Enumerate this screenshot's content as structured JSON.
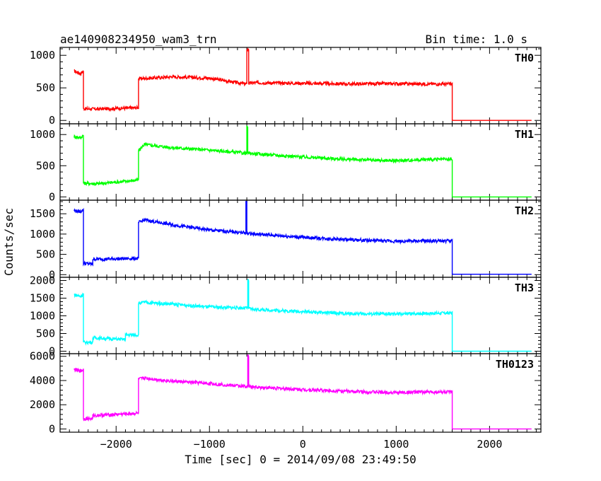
{
  "header": {
    "title": "ae140908234950_wam3_trn",
    "bin_time": "Bin time: 1.0 s"
  },
  "chart_data": {
    "type": "line",
    "xlabel": "Time [sec] 0 = 2014/09/08 23:49:50",
    "ylabel": "Counts/sec",
    "xlim": [
      -2600,
      2550
    ],
    "x_ticks": [
      -2000,
      -1000,
      0,
      1000,
      2000
    ],
    "x_tick_labels": [
      "−2000",
      "−1000",
      "0",
      "1000",
      "2000"
    ],
    "panels": [
      {
        "name": "TH0",
        "color": "#ff0000",
        "ylim": [
          -30,
          1100
        ],
        "y_ticks": [
          0,
          500,
          1000
        ],
        "y_tick_labels": [
          "0",
          "500",
          "1000"
        ],
        "x": [
          -2450,
          -2380,
          -2350,
          -2350,
          -2200,
          -1760,
          -1760,
          -1400,
          -1000,
          -620,
          -600,
          -600,
          -580,
          -580,
          -500,
          0,
          500,
          1000,
          1300,
          1600,
          1600,
          2000,
          2450
        ],
        "y": [
          760,
          720,
          760,
          180,
          175,
          195,
          640,
          670,
          650,
          560,
          560,
          1090,
          1090,
          570,
          580,
          570,
          560,
          565,
          560,
          560,
          0,
          0,
          0
        ]
      },
      {
        "name": "TH1",
        "color": "#00ff00",
        "ylim": [
          -30,
          1150
        ],
        "y_ticks": [
          0,
          500,
          1000
        ],
        "y_tick_labels": [
          "0",
          "500",
          "1000"
        ],
        "x": [
          -2450,
          -2380,
          -2350,
          -2350,
          -2200,
          -1760,
          -1760,
          -1700,
          -1400,
          -1000,
          -600,
          -600,
          -590,
          -590,
          -500,
          0,
          500,
          1000,
          1300,
          1600,
          1600,
          2000,
          2450
        ],
        "y": [
          970,
          950,
          990,
          220,
          210,
          270,
          740,
          840,
          790,
          750,
          700,
          1120,
          1120,
          700,
          690,
          640,
          600,
          580,
          600,
          600,
          0,
          0,
          0
        ]
      },
      {
        "name": "TH2",
        "color": "#0000ff",
        "ylim": [
          -30,
          1800
        ],
        "y_ticks": [
          0,
          500,
          1000,
          1500
        ],
        "y_tick_labels": [
          "0",
          "500",
          "1000",
          "1500"
        ],
        "x": [
          -2450,
          -2380,
          -2350,
          -2350,
          -2250,
          -2250,
          -1760,
          -1760,
          -1700,
          -1400,
          -1000,
          -620,
          -610,
          -610,
          -600,
          -600,
          -500,
          0,
          500,
          1000,
          1300,
          1600,
          1600,
          2000,
          2450
        ],
        "y": [
          1580,
          1550,
          1600,
          280,
          260,
          380,
          400,
          1280,
          1350,
          1230,
          1100,
          1030,
          1030,
          1780,
          1780,
          1020,
          1000,
          920,
          860,
          820,
          830,
          830,
          10,
          10,
          10
        ]
      },
      {
        "name": "TH3",
        "color": "#00ffff",
        "ylim": [
          -30,
          2050
        ],
        "y_ticks": [
          0,
          500,
          1000,
          1500,
          2000
        ],
        "y_tick_labels": [
          "0",
          "500",
          "1000",
          "1500",
          "2000"
        ],
        "x": [
          -2450,
          -2380,
          -2350,
          -2350,
          -2250,
          -2250,
          -1900,
          -1900,
          -1760,
          -1760,
          -1700,
          -1400,
          -1000,
          -600,
          -590,
          -590,
          -580,
          -580,
          -500,
          0,
          500,
          1000,
          1300,
          1600,
          1600,
          2000,
          2450
        ],
        "y": [
          1600,
          1550,
          1620,
          250,
          250,
          380,
          330,
          460,
          460,
          1350,
          1380,
          1330,
          1250,
          1220,
          1220,
          2000,
          2000,
          1200,
          1180,
          1120,
          1060,
          1050,
          1070,
          1080,
          0,
          0,
          0
        ]
      },
      {
        "name": "TH0123",
        "color": "#ff00ff",
        "ylim": [
          -150,
          6100
        ],
        "y_ticks": [
          0,
          2000,
          4000,
          6000
        ],
        "y_tick_labels": [
          "0",
          "2000",
          "4000",
          "6000"
        ],
        "x": [
          -2450,
          -2380,
          -2350,
          -2350,
          -2250,
          -2250,
          -1760,
          -1760,
          -1700,
          -1400,
          -1000,
          -600,
          -590,
          -590,
          -580,
          -580,
          -500,
          0,
          500,
          1000,
          1300,
          1600,
          1600,
          2000,
          2450
        ],
        "y": [
          4900,
          4800,
          4900,
          850,
          850,
          1100,
          1300,
          4100,
          4200,
          3950,
          3750,
          3500,
          3500,
          6000,
          6000,
          3500,
          3450,
          3250,
          3100,
          3000,
          3050,
          3050,
          0,
          0,
          0
        ]
      }
    ]
  }
}
